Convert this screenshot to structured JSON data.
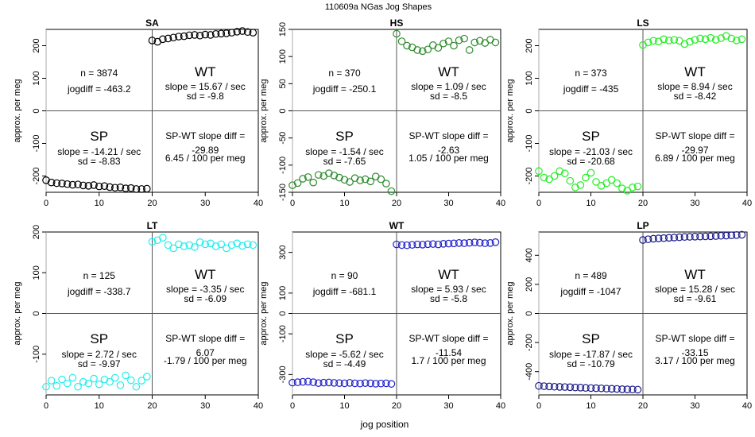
{
  "figure": {
    "title": "110609a    NGas Jog Shapes",
    "xlabel": "jog position",
    "ylabel": "approx. per meg"
  },
  "chart_data": [
    {
      "type": "scatter",
      "title": "SA",
      "color": "#000000",
      "xlim": [
        0,
        40
      ],
      "ylim": [
        -250,
        250
      ],
      "xticks": [
        0,
        10,
        20,
        30,
        40
      ],
      "yticks": [
        -200,
        -100,
        0,
        100,
        200
      ],
      "sp": {
        "x": [
          0,
          1,
          2,
          3,
          4,
          5,
          6,
          7,
          8,
          9,
          10,
          11,
          12,
          13,
          14,
          15,
          16,
          17,
          18,
          19
        ],
        "y": [
          -213,
          -220,
          -222,
          -223,
          -225,
          -227,
          -226,
          -229,
          -230,
          -228,
          -232,
          -231,
          -234,
          -236,
          -235,
          -238,
          -237,
          -240,
          -240,
          -239
        ]
      },
      "wt": {
        "x": [
          20,
          21,
          22,
          23,
          24,
          25,
          26,
          27,
          28,
          29,
          30,
          31,
          32,
          33,
          34,
          35,
          36,
          37,
          38,
          39
        ],
        "y": [
          216,
          212,
          220,
          222,
          225,
          228,
          229,
          232,
          233,
          231,
          234,
          233,
          236,
          237,
          238,
          240,
          243,
          245,
          242,
          240
        ]
      },
      "annotations": {
        "n": "n = 3874",
        "jogdiff": "jogdiff = -463.2",
        "wt_label": "WT",
        "wt_slope": "slope = 15.67 / sec",
        "wt_sd": "sd = -9.8",
        "sp_label": "SP",
        "sp_slope": "slope = -14.21 / sec",
        "sp_sd": "sd = -8.83",
        "diff_label": "SP-WT slope diff =",
        "diff_value": "-29.89",
        "diff_per": "6.45 / 100 per meg"
      }
    },
    {
      "type": "scatter",
      "title": "HS",
      "color": "#2e8b2e",
      "xlim": [
        0,
        40
      ],
      "ylim": [
        -150,
        150
      ],
      "xticks": [
        0,
        10,
        20,
        30,
        40
      ],
      "yticks": [
        -150,
        -100,
        -50,
        0,
        50,
        100,
        150
      ],
      "sp": {
        "x": [
          0,
          1,
          2,
          3,
          4,
          5,
          6,
          7,
          8,
          9,
          10,
          11,
          12,
          13,
          14,
          15,
          16,
          17,
          18,
          19
        ],
        "y": [
          -137,
          -133,
          -125,
          -122,
          -132,
          -118,
          -120,
          -115,
          -119,
          -123,
          -127,
          -131,
          -124,
          -128,
          -126,
          -130,
          -121,
          -126,
          -134,
          -148
        ]
      },
      "wt": {
        "x": [
          20,
          21,
          22,
          23,
          24,
          25,
          26,
          27,
          28,
          29,
          30,
          31,
          32,
          33,
          34,
          35,
          36,
          37,
          38,
          39
        ],
        "y": [
          142,
          128,
          120,
          117,
          112,
          110,
          113,
          121,
          116,
          124,
          128,
          120,
          130,
          133,
          112,
          126,
          129,
          125,
          131,
          126
        ]
      },
      "annotations": {
        "n": "n = 370",
        "jogdiff": "jogdiff = -250.1",
        "wt_label": "WT",
        "wt_slope": "slope = 1.09 / sec",
        "wt_sd": "sd = -8.5",
        "sp_label": "SP",
        "sp_slope": "slope = -1.54 / sec",
        "sp_sd": "sd = -7.65",
        "diff_label": "SP-WT slope diff =",
        "diff_value": "-2.63",
        "diff_per": "1.05 / 100 per meg"
      }
    },
    {
      "type": "scatter",
      "title": "LS",
      "color": "#22ee22",
      "xlim": [
        0,
        40
      ],
      "ylim": [
        -250,
        250
      ],
      "xticks": [
        0,
        10,
        20,
        30,
        40
      ],
      "yticks": [
        -200,
        -100,
        0,
        100,
        200
      ],
      "sp": {
        "x": [
          0,
          1,
          2,
          3,
          4,
          5,
          6,
          7,
          8,
          9,
          10,
          11,
          12,
          13,
          14,
          15,
          16,
          17,
          18,
          19
        ],
        "y": [
          -185,
          -205,
          -210,
          -200,
          -185,
          -192,
          -215,
          -235,
          -228,
          -205,
          -190,
          -218,
          -230,
          -222,
          -212,
          -222,
          -238,
          -245,
          -235,
          -232
        ]
      },
      "wt": {
        "x": [
          20,
          21,
          22,
          23,
          24,
          25,
          26,
          27,
          28,
          29,
          30,
          31,
          32,
          33,
          34,
          35,
          36,
          37,
          38,
          39
        ],
        "y": [
          202,
          210,
          215,
          213,
          220,
          216,
          218,
          215,
          205,
          212,
          218,
          222,
          220,
          224,
          218,
          223,
          230,
          222,
          216,
          220
        ]
      },
      "annotations": {
        "n": "n = 373",
        "jogdiff": "jogdiff = -435",
        "wt_label": "WT",
        "wt_slope": "slope = 8.94 / sec",
        "wt_sd": "sd = -8.42",
        "sp_label": "SP",
        "sp_slope": "slope = -21.03 / sec",
        "sp_sd": "sd = -20.68",
        "diff_label": "SP-WT slope diff =",
        "diff_value": "-29.97",
        "diff_per": "6.89 / 100 per meg"
      }
    },
    {
      "type": "scatter",
      "title": "LT",
      "color": "#22eeee",
      "xlim": [
        0,
        40
      ],
      "ylim": [
        -200,
        200
      ],
      "xticks": [
        0,
        10,
        20,
        30,
        40
      ],
      "yticks": [
        -100,
        0,
        100,
        200
      ],
      "sp": {
        "x": [
          0,
          1,
          2,
          3,
          4,
          5,
          6,
          7,
          8,
          9,
          10,
          11,
          12,
          13,
          14,
          15,
          16,
          17,
          18,
          19
        ],
        "y": [
          -180,
          -165,
          -178,
          -162,
          -172,
          -158,
          -180,
          -168,
          -172,
          -160,
          -174,
          -162,
          -168,
          -158,
          -176,
          -152,
          -164,
          -180,
          -165,
          -155
        ]
      },
      "wt": {
        "x": [
          20,
          21,
          22,
          23,
          24,
          25,
          26,
          27,
          28,
          29,
          30,
          31,
          32,
          33,
          34,
          35,
          36,
          37,
          38,
          39
        ],
        "y": [
          176,
          180,
          186,
          168,
          160,
          170,
          165,
          168,
          163,
          175,
          170,
          172,
          165,
          170,
          160,
          168,
          172,
          166,
          170,
          168
        ]
      },
      "annotations": {
        "n": "n = 125",
        "jogdiff": "jogdiff = -338.7",
        "wt_label": "WT",
        "wt_slope": "slope = -3.35 / sec",
        "wt_sd": "sd = -6.09",
        "sp_label": "SP",
        "sp_slope": "slope = 2.72 / sec",
        "sp_sd": "sd = -9.97",
        "diff_label": "SP-WT slope diff =",
        "diff_value": "6.07",
        "diff_per": "-1.79 / 100 per meg"
      }
    },
    {
      "type": "scatter",
      "title": "WT",
      "color": "#2222cc",
      "xlim": [
        0,
        40
      ],
      "ylim": [
        -400,
        400
      ],
      "xticks": [
        0,
        10,
        20,
        30,
        40
      ],
      "yticks": [
        -300,
        -100,
        0,
        100,
        300
      ],
      "sp": {
        "x": [
          0,
          1,
          2,
          3,
          4,
          5,
          6,
          7,
          8,
          9,
          10,
          11,
          12,
          13,
          14,
          15,
          16,
          17,
          18,
          19
        ],
        "y": [
          -340,
          -338,
          -336,
          -335,
          -338,
          -342,
          -340,
          -339,
          -341,
          -342,
          -343,
          -341,
          -343,
          -344,
          -342,
          -343,
          -345,
          -344,
          -343,
          -346
        ]
      },
      "wt": {
        "x": [
          20,
          21,
          22,
          23,
          24,
          25,
          26,
          27,
          28,
          29,
          30,
          31,
          32,
          33,
          34,
          35,
          36,
          37,
          38,
          39
        ],
        "y": [
          339,
          336,
          335,
          337,
          339,
          338,
          340,
          341,
          339,
          342,
          343,
          344,
          346,
          345,
          347,
          349,
          347,
          345,
          346,
          350
        ]
      },
      "annotations": {
        "n": "n = 90",
        "jogdiff": "jogdiff = -681.1",
        "wt_label": "WT",
        "wt_slope": "slope = 5.93 / sec",
        "wt_sd": "sd = -5.8",
        "sp_label": "SP",
        "sp_slope": "slope = -5.62 / sec",
        "sp_sd": "sd = -4.49",
        "diff_label": "SP-WT slope diff =",
        "diff_value": "-11.54",
        "diff_per": "1.7 / 100 per meg"
      }
    },
    {
      "type": "scatter",
      "title": "LP",
      "color": "#1a1a8c",
      "xlim": [
        0,
        40
      ],
      "ylim": [
        -560,
        560
      ],
      "xticks": [
        0,
        10,
        20,
        30,
        40
      ],
      "yticks": [
        -400,
        -200,
        0,
        200,
        400
      ],
      "sp": {
        "x": [
          0,
          1,
          2,
          3,
          4,
          5,
          6,
          7,
          8,
          9,
          10,
          11,
          12,
          13,
          14,
          15,
          16,
          17,
          18,
          19
        ],
        "y": [
          -498,
          -500,
          -502,
          -504,
          -505,
          -506,
          -507,
          -509,
          -510,
          -512,
          -513,
          -514,
          -515,
          -517,
          -518,
          -519,
          -521,
          -522,
          -523,
          -524
        ]
      },
      "wt": {
        "x": [
          20,
          21,
          22,
          23,
          24,
          25,
          26,
          27,
          28,
          29,
          30,
          31,
          32,
          33,
          34,
          35,
          36,
          37,
          38,
          39
        ],
        "y": [
          505,
          510,
          514,
          516,
          518,
          520,
          522,
          524,
          526,
          527,
          528,
          529,
          530,
          531,
          532,
          534,
          535,
          537,
          539,
          541
        ]
      },
      "annotations": {
        "n": "n = 489",
        "jogdiff": "jogdiff = -1047",
        "wt_label": "WT",
        "wt_slope": "slope = 15.28 / sec",
        "wt_sd": "sd = -9.61",
        "sp_label": "SP",
        "sp_slope": "slope = -17.87 / sec",
        "sp_sd": "sd = -10.79",
        "diff_label": "SP-WT slope diff =",
        "diff_value": "-33.15",
        "diff_per": "3.17 / 100 per meg"
      }
    }
  ]
}
